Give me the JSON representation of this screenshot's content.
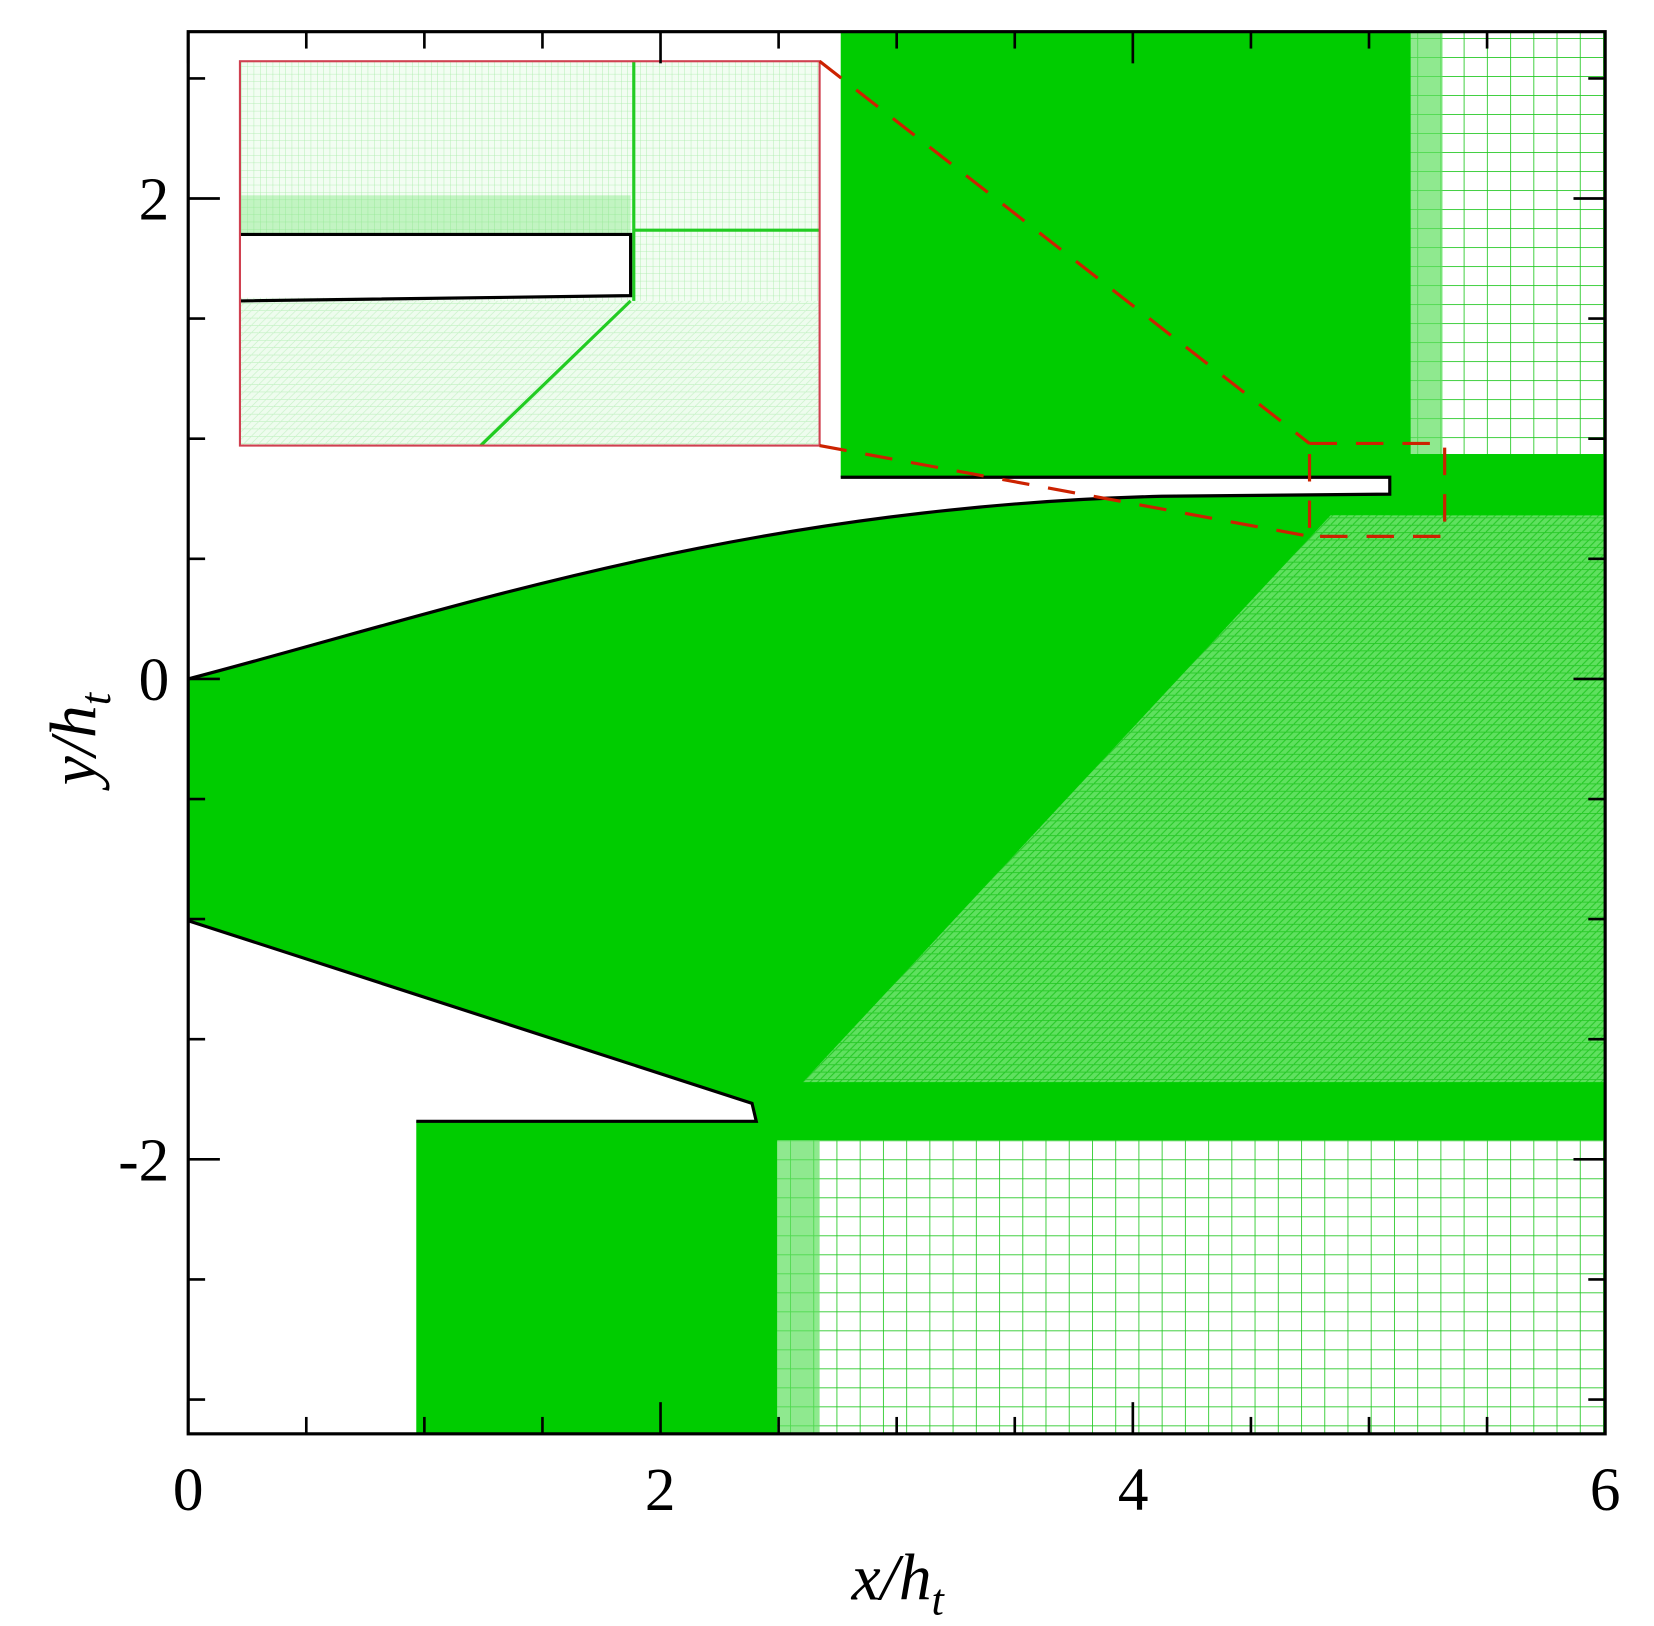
{
  "figure": {
    "xaxis": {
      "label_main": "x/h",
      "label_sub": "t",
      "range": [
        0,
        6
      ],
      "major_ticks": [
        0,
        2,
        4,
        6
      ],
      "minor_step": 0.5,
      "tick_labels": [
        "0",
        "2",
        "4",
        "6"
      ]
    },
    "yaxis": {
      "label_main": "y/h",
      "label_sub": "t",
      "range": [
        -3.14,
        2.7
      ],
      "major_ticks": [
        2,
        0,
        -2
      ],
      "minor_step": 0.5,
      "tick_labels": [
        "2",
        "0",
        "-2"
      ]
    },
    "colors": {
      "dense_mesh": "#00cc00",
      "mesh_line": "#2fd12f",
      "walls": "#000000",
      "inset_border": "#d04050",
      "zoom_indicator": "#cc2200"
    },
    "inset": {
      "description_shown": false,
      "zoom_box_style": "dashed"
    }
  }
}
